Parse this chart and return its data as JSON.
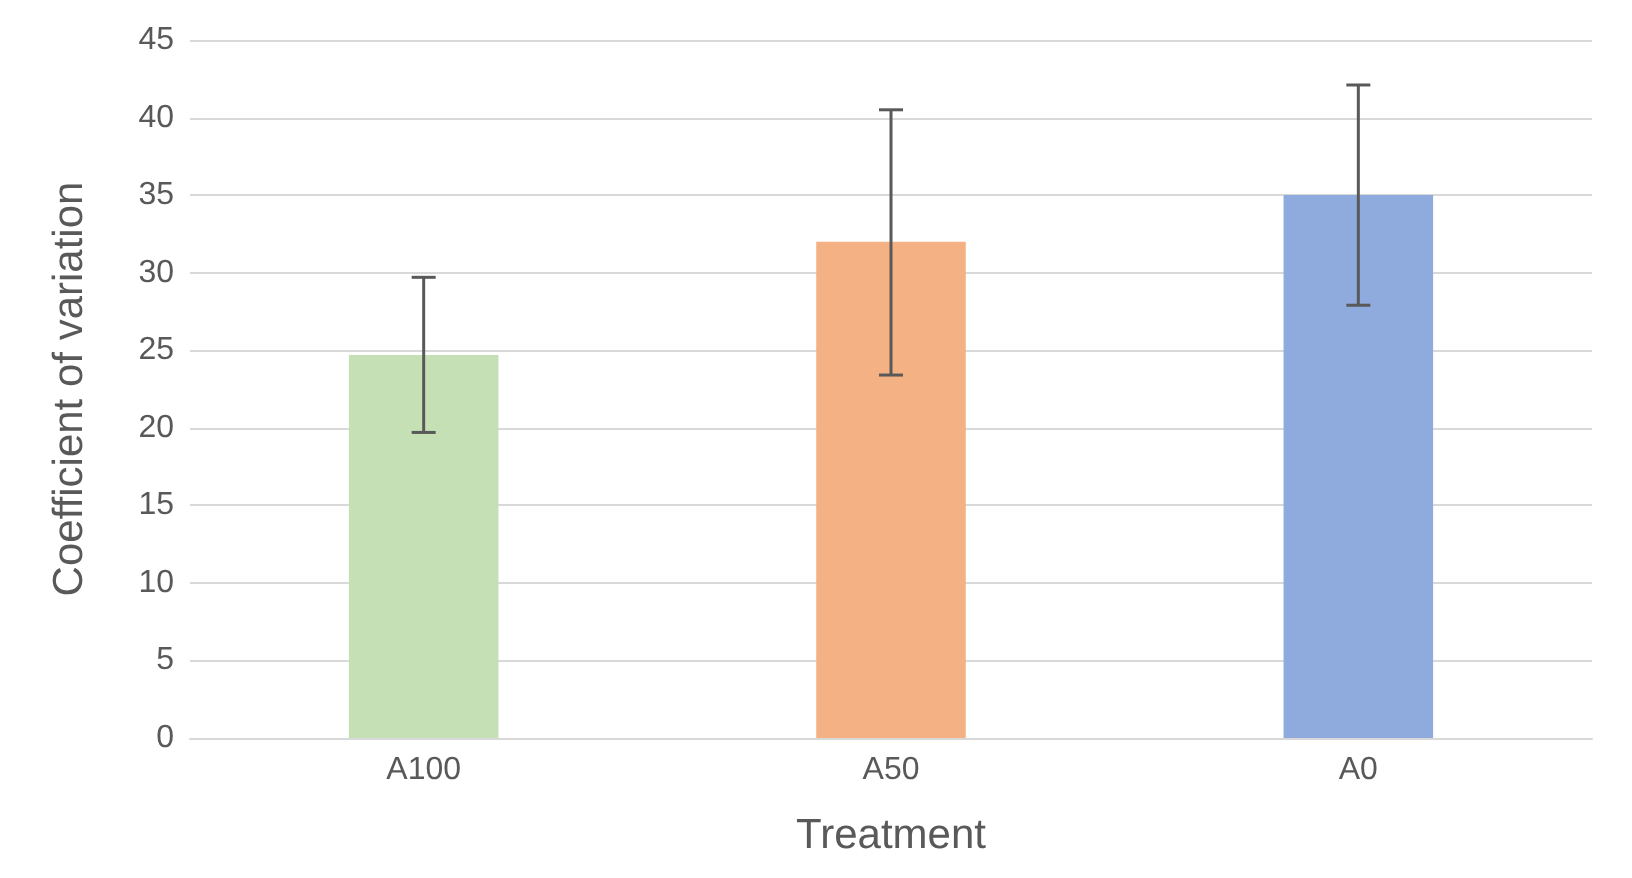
{
  "chart_data": {
    "type": "bar",
    "xlabel": "Treatment",
    "ylabel": "Coefficient of variation",
    "categories": [
      "A100",
      "A50",
      "A0"
    ],
    "values": [
      24.7,
      32,
      35
    ],
    "colors": [
      "#c5e0b4",
      "#f4b183",
      "#8faadc"
    ],
    "errors": [
      [
        19.7,
        29.7
      ],
      [
        23.4,
        40.5
      ],
      [
        27.9,
        42.1
      ]
    ],
    "ylim": [
      0,
      45
    ],
    "yticks": [
      0,
      5,
      10,
      15,
      20,
      25,
      30,
      35,
      40,
      45
    ],
    "grid": "y"
  }
}
